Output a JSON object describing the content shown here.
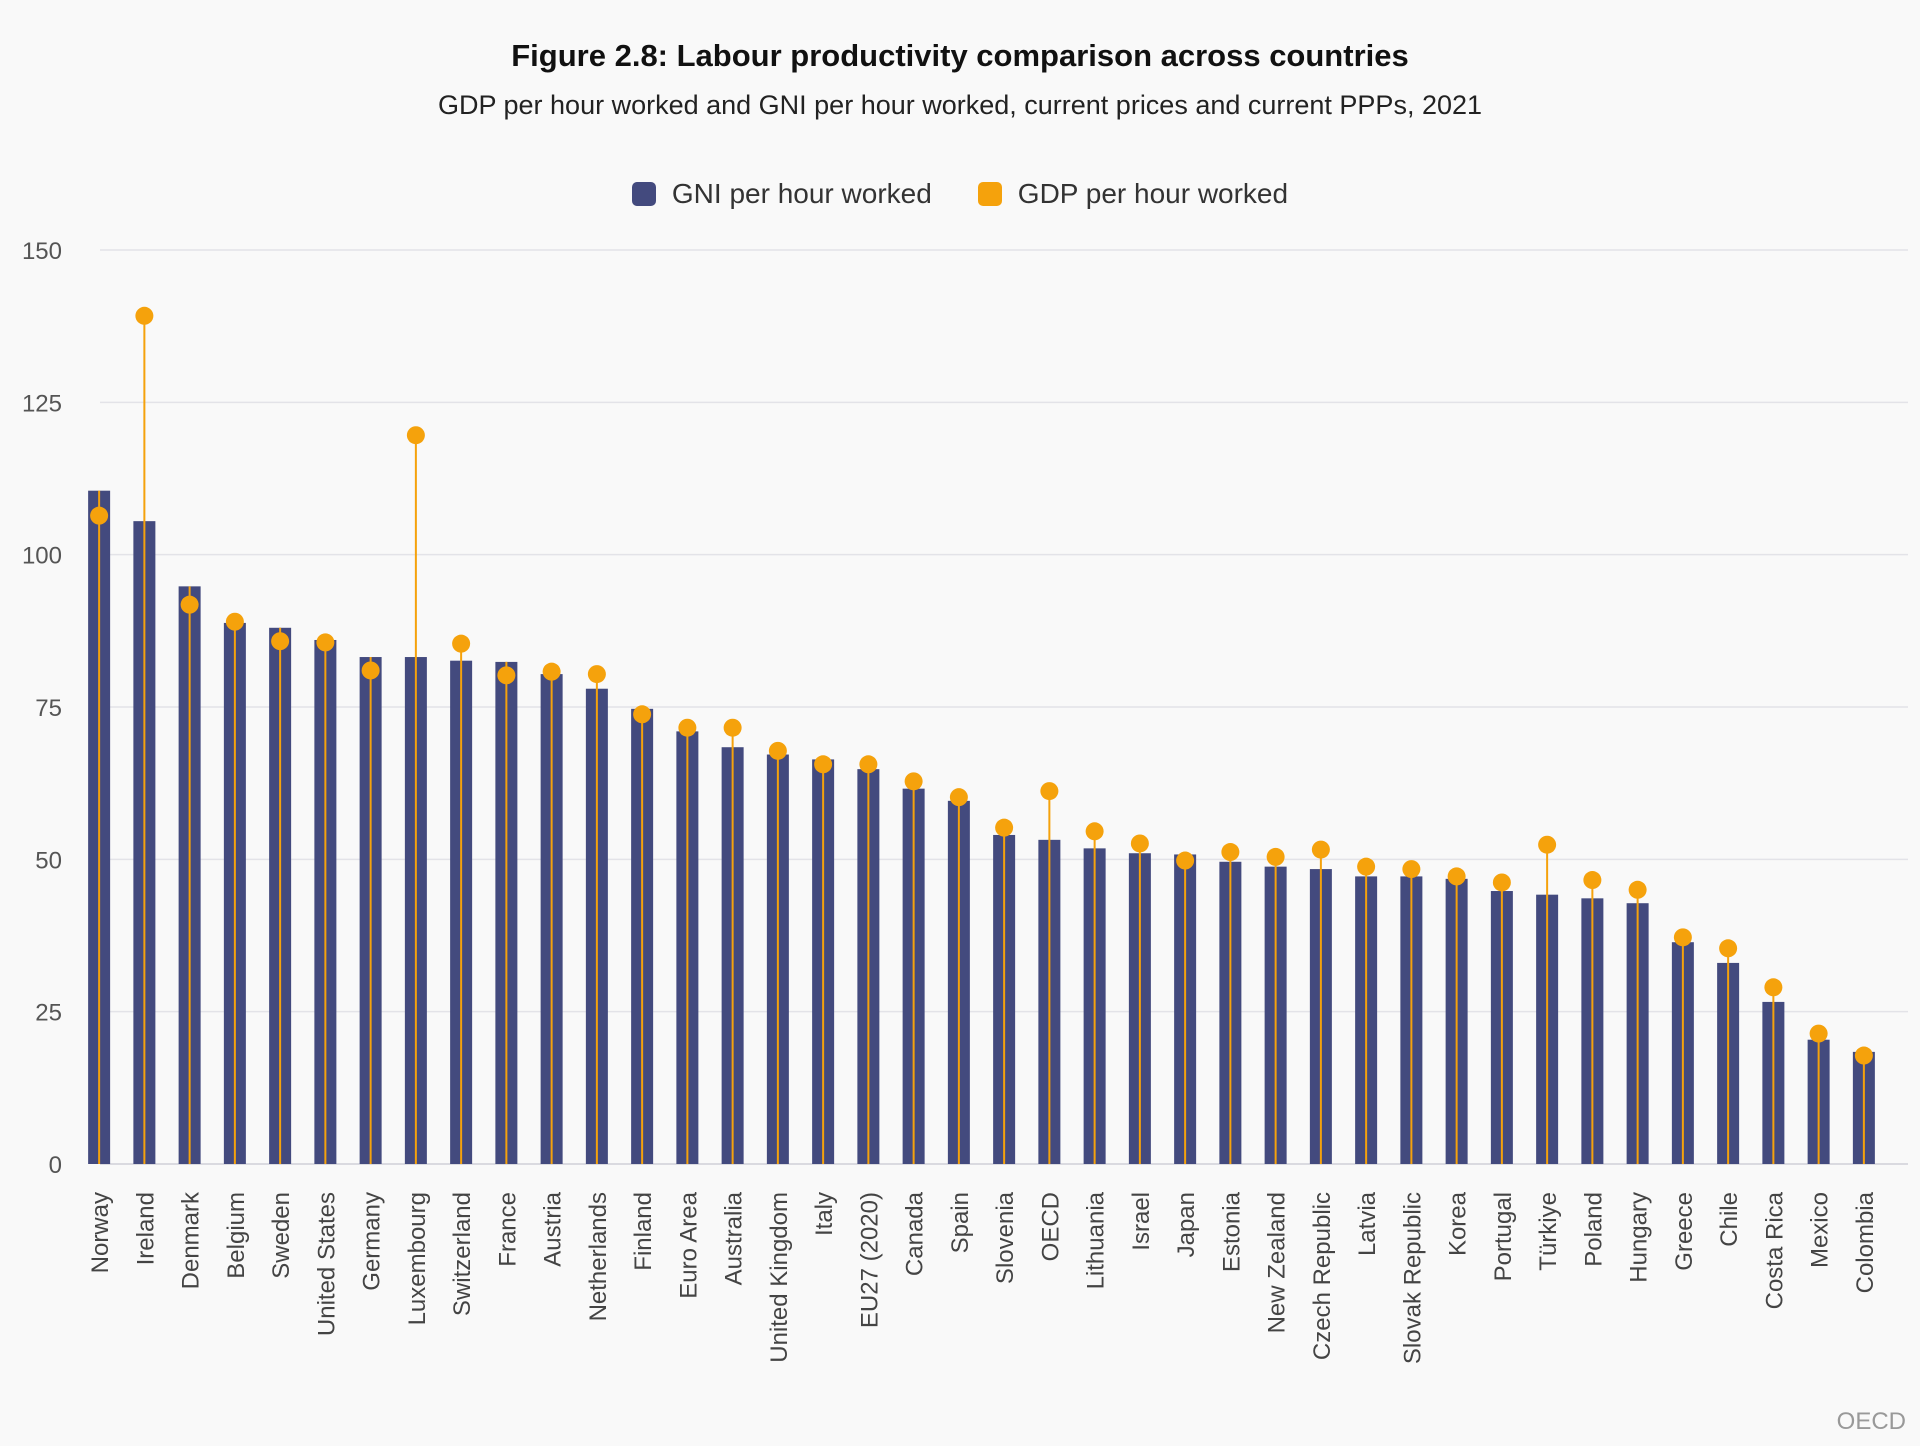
{
  "title": "Figure 2.8: Labour productivity comparison across countries",
  "subtitle": "GDP per hour worked and GNI per hour worked, current prices and current PPPs, 2021",
  "source": "OECD",
  "colors": {
    "gni": "#434a7e",
    "gdp": "#f5a20c",
    "grid": "#e3e3e8",
    "axis_text": "#555555"
  },
  "chart_data": {
    "type": "bar",
    "categories": [
      "Norway",
      "Ireland",
      "Denmark",
      "Belgium",
      "Sweden",
      "United States",
      "Germany",
      "Luxembourg",
      "Switzerland",
      "France",
      "Austria",
      "Netherlands",
      "Finland",
      "Euro Area",
      "Australia",
      "United Kingdom",
      "Italy",
      "EU27 (2020)",
      "Canada",
      "Spain",
      "Slovenia",
      "OECD",
      "Lithuania",
      "Israel",
      "Japan",
      "Estonia",
      "New Zealand",
      "Czech Republic",
      "Latvia",
      "Slovak Republic",
      "Korea",
      "Portugal",
      "Türkiye",
      "Poland",
      "Hungary",
      "Greece",
      "Chile",
      "Costa Rica",
      "Mexico",
      "Colombia"
    ],
    "series": [
      {
        "name": "GNI per hour worked",
        "mark": "bar",
        "values": [
          110.5,
          105.5,
          94.8,
          88.8,
          88,
          86,
          83.2,
          83.2,
          82.6,
          82.4,
          80.4,
          78,
          74.7,
          71,
          68.4,
          67.2,
          66.4,
          64.8,
          61.6,
          59.6,
          54,
          53.2,
          51.8,
          51,
          50.8,
          49.6,
          48.8,
          48.4,
          47.2,
          47.2,
          46.8,
          44.8,
          44.2,
          43.6,
          42.8,
          36.4,
          33,
          26.6,
          20.4,
          18.4
        ]
      },
      {
        "name": "GDP per hour worked",
        "mark": "dot",
        "values": [
          106.4,
          139.2,
          91.8,
          89,
          85.8,
          85.6,
          81,
          119.6,
          85.4,
          80.2,
          80.8,
          80.4,
          73.8,
          71.6,
          71.6,
          67.8,
          65.6,
          65.6,
          62.8,
          60.2,
          55.2,
          61.2,
          54.6,
          52.6,
          49.8,
          51.2,
          50.4,
          51.6,
          48.8,
          48.4,
          47.2,
          46.2,
          52.4,
          46.6,
          45,
          37.2,
          35.4,
          29,
          21.4,
          17.8
        ]
      }
    ],
    "y_ticks": [
      "0",
      "25",
      "50",
      "75",
      "100",
      "125",
      "150"
    ],
    "ylim": [
      0,
      150
    ],
    "grid": true,
    "legend_position": "top-center"
  }
}
